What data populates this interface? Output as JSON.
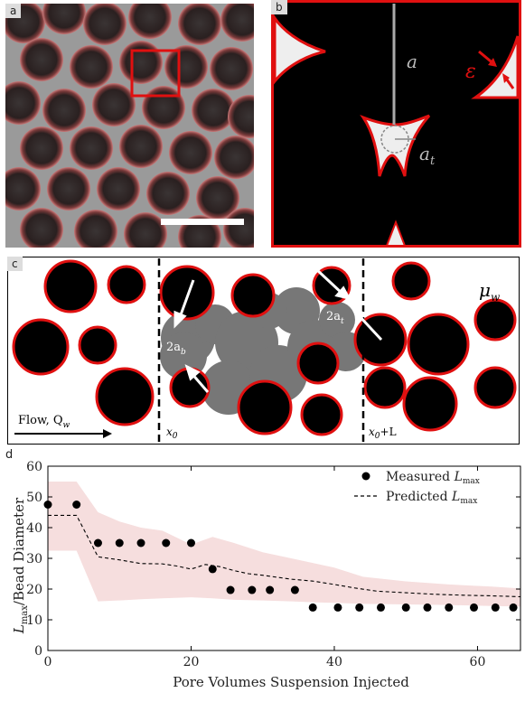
{
  "panel_a": {
    "label": "a"
  },
  "panel_b": {
    "label": "b",
    "a": "a",
    "epsilon": "ε",
    "at": "a",
    "at_sub": "t"
  },
  "panel_c": {
    "label": "c",
    "mu": "μ",
    "mu_sub": "w",
    "ab_pre": "2a",
    "ab_sub": "b",
    "at_pre": "2a",
    "at_sub": "t",
    "x0": "x",
    "x0_sub": "0",
    "x0L_sub": "0",
    "x0L_suffix": "+L",
    "flow": "Flow, Q",
    "flow_sub": "w"
  },
  "panel_d": {
    "label": "d"
  },
  "chart_data": {
    "type": "scatter",
    "xlabel": "Pore Volumes Suspension Injected",
    "ylabel": "L_max/Bead Diameter",
    "xlim": [
      0,
      66
    ],
    "ylim": [
      0,
      60
    ],
    "xticks": [
      0,
      20,
      40,
      60
    ],
    "yticks": [
      0,
      10,
      20,
      30,
      40,
      50,
      60
    ],
    "legend_position": "top-right",
    "series": [
      {
        "name": "Measured L_max",
        "style": "points",
        "x": [
          0,
          4,
          7,
          10,
          13,
          16.5,
          20,
          23,
          25.5,
          28.5,
          31,
          34.5,
          37,
          40.5,
          43.5,
          46.5,
          50,
          53,
          56,
          59.5,
          62.5,
          65,
          67
        ],
        "y": [
          47.5,
          47.5,
          35,
          35,
          35,
          35,
          35,
          26.5,
          19.7,
          19.7,
          19.7,
          19.7,
          14,
          14,
          14,
          14,
          14,
          14,
          14,
          14,
          14,
          14,
          14
        ]
      },
      {
        "name": "Predicted L_max",
        "style": "dashed",
        "x": [
          0,
          3,
          4,
          7,
          10,
          13,
          16,
          18,
          20,
          22,
          24,
          26,
          28,
          30,
          34,
          37,
          40,
          43,
          46,
          50,
          54,
          58,
          62,
          66
        ],
        "y": [
          44,
          44,
          44,
          30.5,
          29.5,
          28.3,
          28.2,
          27.5,
          26.5,
          28,
          27.3,
          26,
          25,
          24.5,
          23.2,
          22.6,
          21.5,
          20.3,
          19.3,
          18.8,
          18.3,
          18,
          17.8,
          17.5
        ]
      },
      {
        "name": "",
        "style": "band",
        "x": [
          0,
          4,
          7,
          10,
          13,
          16,
          20,
          23,
          26,
          30,
          34,
          37,
          40,
          44,
          50,
          56,
          62,
          66
        ],
        "upper": [
          55,
          55,
          45,
          42,
          40,
          39,
          34.5,
          37,
          35,
          32,
          30,
          28.5,
          27,
          24,
          22.5,
          21.5,
          20.8,
          20.2
        ],
        "lower": [
          32.5,
          32.5,
          16,
          16.3,
          16.7,
          17,
          17.3,
          17,
          16.5,
          16.3,
          16,
          15.7,
          15.5,
          15.2,
          15,
          14.8,
          14.5,
          14.3
        ]
      }
    ]
  }
}
